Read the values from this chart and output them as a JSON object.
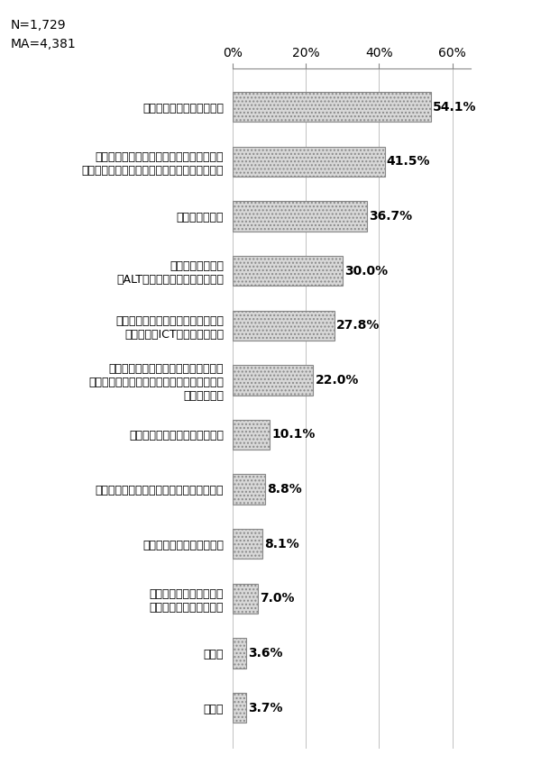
{
  "title_lines": [
    "N=1,729",
    "MA=4,381"
  ],
  "categories": [
    "いじめや不登校等への対応",
    "児童生徒に合わせた、きめ細かな指導の充\n実（少人数教育指導教員（きらり先生）など）",
    "道徳教育の充実",
    "外国語教育の充実\n（ALT（外国語指導助手）など）",
    "パソコンやタブレット端末の活用を\n目的としたICT教育環境の充実",
    "特別な配慮が必要な児童生徒への支援\n（特別支援教育推進教員（はほえみ先生）・\n介助員など）",
    "課外活動（部活動など）の充実",
    "理数教育の充実（理科支援員の配置など）",
    "幼保小及び小中学校の連携",
    "学校図書館の活用の推進\n（学校図書館司書など）",
    "その他",
    "無回答"
  ],
  "values": [
    54.1,
    41.5,
    36.7,
    30.0,
    27.8,
    22.0,
    10.1,
    8.8,
    8.1,
    7.0,
    3.6,
    3.7
  ],
  "bar_color": "#d8d8d8",
  "bar_edge_color": "#888888",
  "background_color": "#ffffff",
  "xlim": [
    0,
    65
  ],
  "xticks": [
    0,
    20,
    40,
    60
  ],
  "xticklabels": [
    "0%",
    "20%",
    "40%",
    "60%"
  ],
  "value_fontsize": 10,
  "label_fontsize": 9,
  "title_fontsize": 10
}
